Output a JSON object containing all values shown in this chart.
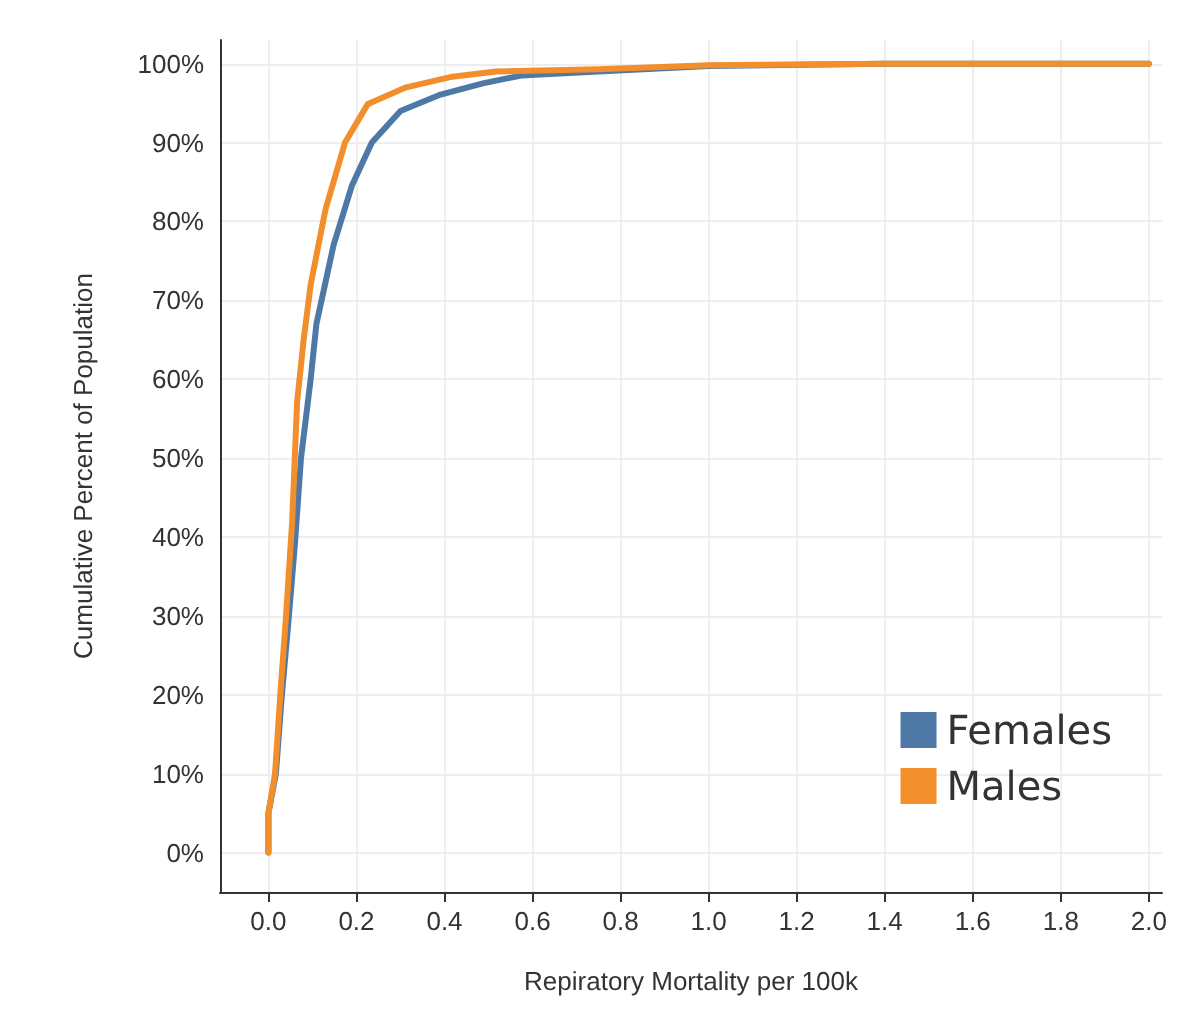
{
  "chart_data": {
    "type": "line",
    "xlabel": "Repiratory Mortality per 100k",
    "ylabel": "Cumulative Percent of Population",
    "xlim": [
      -0.11,
      2.03
    ],
    "xticks": [
      {
        "value": 0,
        "label": "0.0"
      },
      0.2,
      0.4,
      0.6,
      0.8,
      {
        "value": 1,
        "label": "1.0"
      },
      1.2,
      1.4,
      1.6,
      1.8,
      {
        "value": 2,
        "label": "2.0"
      }
    ],
    "ylim": [
      -5,
      103
    ],
    "yticks": [
      {
        "value": 0,
        "label": "0%"
      },
      {
        "value": 10,
        "label": "10%"
      },
      {
        "value": 20,
        "label": "20%"
      },
      {
        "value": 30,
        "label": "30%"
      },
      {
        "value": 40,
        "label": "40%"
      },
      {
        "value": 50,
        "label": "50%"
      },
      {
        "value": 60,
        "label": "60%"
      },
      {
        "value": 70,
        "label": "70%"
      },
      {
        "value": 80,
        "label": "80%"
      },
      {
        "value": 90,
        "label": "90%"
      },
      {
        "value": 100,
        "label": "100%"
      }
    ],
    "grid": true,
    "legend": "bottom right",
    "marker": "none",
    "line_style": "solid",
    "series": [
      {
        "name": "Females",
        "color": "#4e79a7",
        "x": [
          0,
          0,
          0.017,
          0.03,
          0.045,
          0.06,
          0.074,
          0.096,
          0.109,
          0.148,
          0.19,
          0.235,
          0.3,
          0.387,
          0.487,
          0.574,
          0.75,
          1,
          1.4,
          2
        ],
        "values": [
          0,
          5,
          10,
          19.6,
          29,
          39,
          50,
          60,
          67,
          77,
          84.6,
          90,
          94,
          96,
          97.5,
          98.5,
          99,
          99.7,
          100,
          100
        ]
      },
      {
        "name": "Males",
        "color": "#f28e2b",
        "x": [
          0,
          0,
          0.015,
          0.027,
          0.04,
          0.054,
          0.065,
          0.08,
          0.096,
          0.13,
          0.174,
          0.226,
          0.313,
          0.413,
          0.517,
          0.75,
          1,
          1.4,
          2
        ],
        "values": [
          0,
          5,
          10,
          20,
          30,
          42,
          57,
          65,
          72,
          81.6,
          90,
          94.9,
          97,
          98.3,
          99,
          99.3,
          99.8,
          100,
          100
        ]
      }
    ]
  }
}
